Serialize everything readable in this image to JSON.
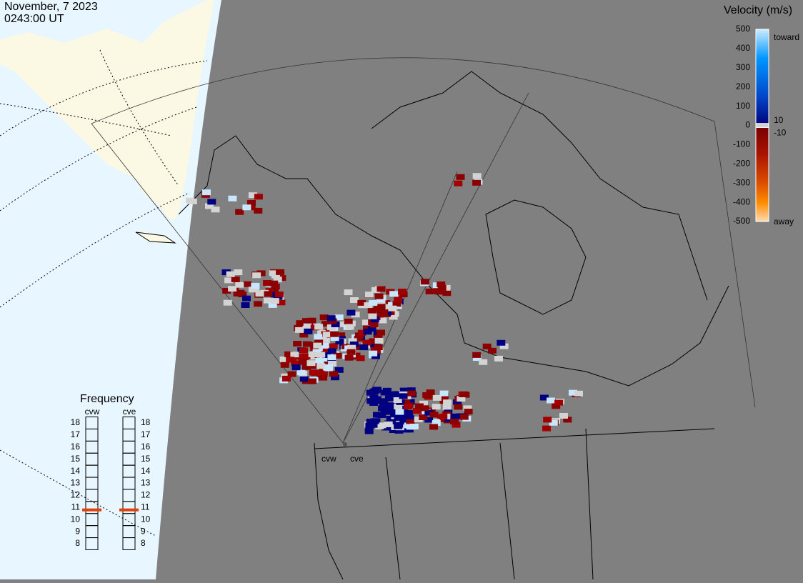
{
  "header": {
    "date": "November, 7 2023",
    "time": "0243:00 UT"
  },
  "colorbar": {
    "title": "Velocity (m/s)",
    "ticks": [
      500,
      400,
      300,
      200,
      100,
      0,
      -100,
      -200,
      -300,
      -400,
      -500
    ],
    "inner_ticks": [
      10,
      -10
    ],
    "toward": "toward",
    "away": "away"
  },
  "frequency": {
    "title": "Frequency",
    "ticks": [
      18,
      17,
      16,
      15,
      14,
      13,
      12,
      11,
      10,
      9,
      8
    ],
    "radars": [
      {
        "name": "cvw",
        "value": 10.8
      },
      {
        "name": "cve",
        "value": 10.8
      }
    ]
  },
  "radar_labels": [
    "cvw",
    "cve"
  ]
}
